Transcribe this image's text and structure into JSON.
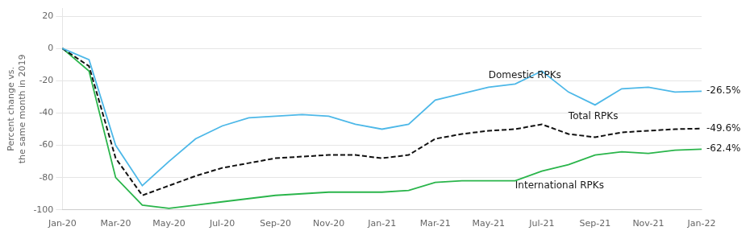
{
  "chart_data": {
    "type": "line",
    "y_label": "Percent change vs.\nthe same month in 2019",
    "categories": [
      "Jan-20",
      null,
      "Mar-20",
      null,
      "May-20",
      null,
      "Jul-20",
      null,
      "Sep-20",
      null,
      "Nov-20",
      null,
      "Jan-21",
      null,
      "Mar-21",
      null,
      "May-21",
      null,
      "Jul-21",
      null,
      "Sep-21",
      null,
      "Nov-21",
      null,
      "Jan-22"
    ],
    "series": [
      {
        "name": "Domestic RPKs",
        "color": "#4db8e8",
        "line_style": "solid",
        "end_label": "-26.5%",
        "values": [
          0,
          -7,
          -60,
          -85,
          -70,
          -56,
          -48,
          -43,
          -42,
          -41,
          -42,
          -47,
          -50,
          -47,
          -32,
          -28,
          -24,
          -22,
          -14,
          -27,
          -35,
          -25,
          -24,
          -27,
          -26.5
        ]
      },
      {
        "name": "Total RPKs",
        "color": "#111111",
        "line_style": "dashed",
        "end_label": "-49.6%",
        "values": [
          0,
          -11,
          -68,
          -91,
          -85,
          -79,
          -74,
          -71,
          -68,
          -67,
          -66,
          -66,
          -68,
          -66,
          -56,
          -53,
          -51,
          -50,
          -47,
          -53,
          -55,
          -52,
          -51,
          -50,
          -49.6
        ]
      },
      {
        "name": "International RPKs",
        "color": "#2ab54b",
        "line_style": "solid",
        "end_label": "-62.4%",
        "values": [
          0,
          -14,
          -80,
          -97,
          -99,
          -97,
          -95,
          -93,
          -91,
          -90,
          -89,
          -89,
          -89,
          -88,
          -83,
          -82,
          -82,
          -82,
          -76,
          -72,
          -66,
          -64,
          -65,
          -63,
          -62.4
        ]
      }
    ],
    "annotations": [
      {
        "text": "Domestic RPKs",
        "x": 16,
        "y": -20
      },
      {
        "text": "Total RPKs",
        "x": 19,
        "y": -45
      },
      {
        "text": "International RPKs",
        "x": 17,
        "y": -88
      }
    ],
    "ylim": [
      -100,
      25
    ],
    "yticks": [
      -100,
      -80,
      -60,
      -40,
      -20,
      0,
      20
    ],
    "grid": true
  }
}
